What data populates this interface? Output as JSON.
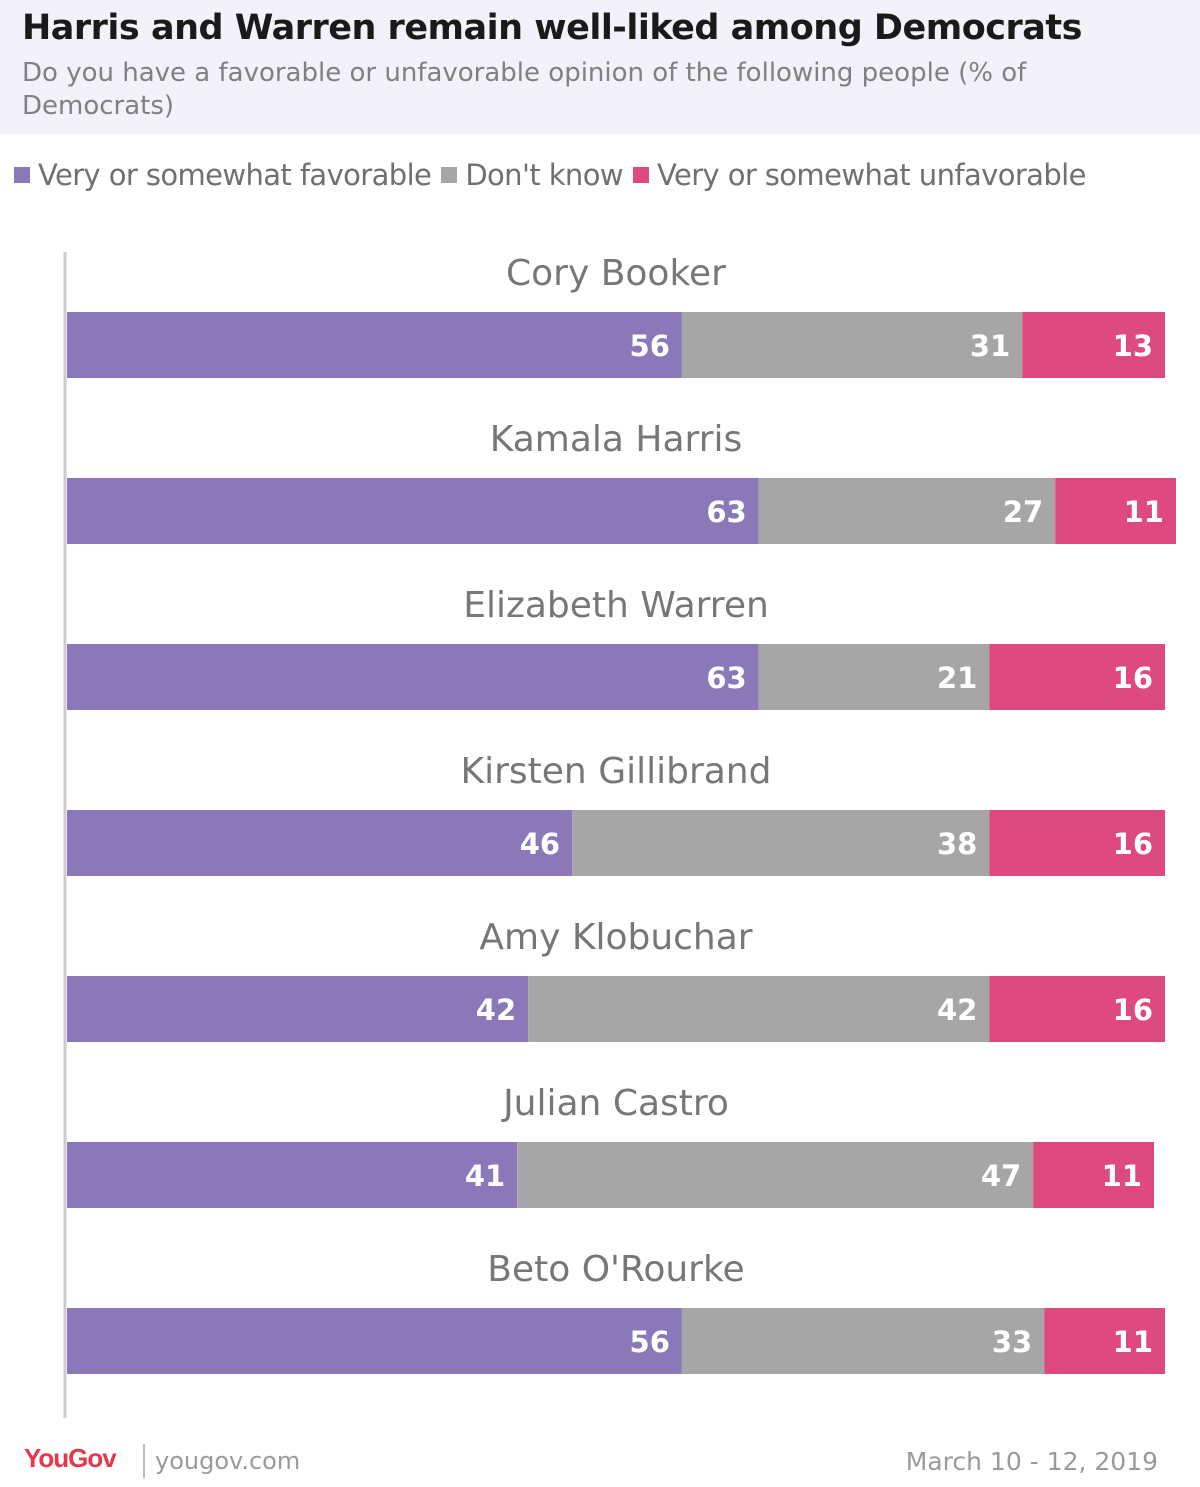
{
  "header": {
    "title": "Harris and Warren remain well-liked among Democrats",
    "subtitle": "Do you have a favorable or unfavorable opinion of the following people (% of Democrats)"
  },
  "legend": [
    {
      "label": "Very or somewhat favorable",
      "color": "#8b78b8"
    },
    {
      "label": "Don't know",
      "color": "#a6a6a6"
    },
    {
      "label": "Very or somewhat unfavorable",
      "color": "#de4a80"
    }
  ],
  "chart_data": {
    "type": "bar",
    "orientation": "horizontal",
    "stacked": true,
    "categories": [
      "Cory Booker",
      "Kamala Harris",
      "Elizabeth Warren",
      "Kirsten Gillibrand",
      "Amy Klobuchar",
      "Julian Castro",
      "Beto O'Rourke"
    ],
    "series": [
      {
        "name": "Very or somewhat favorable",
        "color": "#8b78b8",
        "values": [
          56,
          63,
          63,
          46,
          42,
          41,
          56
        ]
      },
      {
        "name": "Don't know",
        "color": "#a6a6a6",
        "values": [
          31,
          27,
          21,
          38,
          42,
          47,
          33
        ]
      },
      {
        "name": "Very or somewhat unfavorable",
        "color": "#de4a80",
        "values": [
          13,
          11,
          16,
          16,
          16,
          11,
          11
        ]
      }
    ],
    "xlim": [
      0,
      100
    ],
    "legend_position": "top",
    "grid": false,
    "data_labels": true,
    "title": "Harris and Warren remain well-liked among Democrats",
    "subtitle": "Do you have a favorable or unfavorable opinion of the following people (% of Democrats)"
  },
  "footer": {
    "brand": "YouGov",
    "url": "yougov.com",
    "date": "March 10 - 12, 2019"
  }
}
